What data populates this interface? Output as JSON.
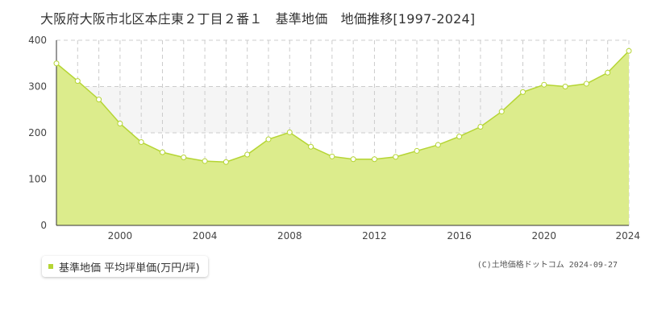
{
  "title": "大阪府大阪市北区本庄東２丁目２番１　基準地価　地価推移[1997-2024]",
  "legend_label": "基準地価 平均坪単価(万円/坪)",
  "copyright": "(C)土地価格ドットコム 2024-09-27",
  "colors": {
    "area": "#dcec8c",
    "line": "#b5d534",
    "point_fill": "#ffffff",
    "band": "#f5f5f5"
  },
  "chart_data": {
    "type": "area",
    "title": "",
    "xlabel": "",
    "ylabel": "",
    "xlim": [
      1997,
      2024
    ],
    "ylim": [
      0,
      400
    ],
    "yticks": [
      0,
      100,
      200,
      300,
      400
    ],
    "xtick_labels": [
      "2000",
      "2004",
      "2008",
      "2012",
      "2016",
      "2020",
      "2024"
    ],
    "grid": true,
    "legend": "bottom-left",
    "series": [
      {
        "name": "基準地価 平均坪単価(万円/坪)",
        "x": [
          1997,
          1998,
          1999,
          2000,
          2001,
          2002,
          2003,
          2004,
          2005,
          2006,
          2007,
          2008,
          2009,
          2010,
          2011,
          2012,
          2013,
          2014,
          2015,
          2016,
          2017,
          2018,
          2019,
          2020,
          2021,
          2022,
          2023,
          2024
        ],
        "y": [
          350,
          312,
          272,
          220,
          180,
          158,
          147,
          139,
          137,
          153,
          186,
          201,
          170,
          149,
          143,
          143,
          148,
          161,
          174,
          192,
          213,
          246,
          288,
          304,
          300,
          306,
          330,
          377
        ]
      }
    ]
  }
}
